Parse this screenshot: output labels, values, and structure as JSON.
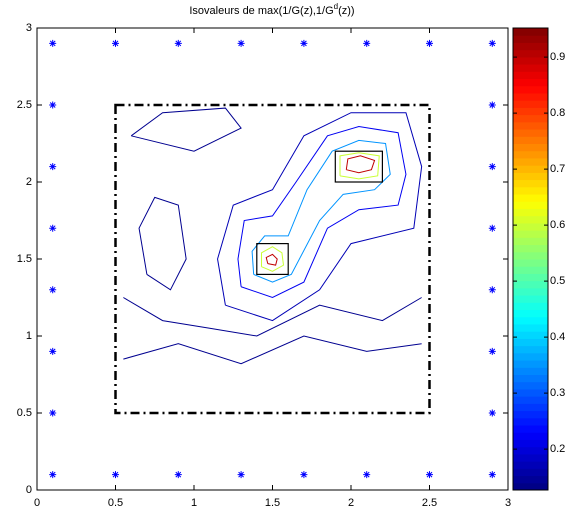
{
  "chart_data": {
    "type": "contour",
    "title": [
      "Isovaleurs de max(1/G(z),1/G",
      "d",
      "(z))"
    ],
    "xlim": [
      0,
      3
    ],
    "ylim": [
      0,
      3
    ],
    "xticks": [
      0,
      0.5,
      1,
      1.5,
      2,
      2.5,
      3
    ],
    "yticks": [
      0,
      0.5,
      1,
      1.5,
      2,
      2.5,
      3
    ],
    "colorbar": {
      "clim": [
        0.127,
        0.952
      ],
      "ticks": [
        0.2,
        0.3,
        0.4,
        0.5,
        0.6,
        0.7,
        0.8,
        0.9
      ],
      "colormap": "jet"
    },
    "domain": [
      0.5,
      2.5,
      0.5,
      2.5
    ],
    "boxes": [
      [
        1.4,
        1.6,
        1.4,
        1.6
      ],
      [
        1.9,
        2.2,
        2.0,
        2.2
      ]
    ],
    "sources": {
      "color": "#0000ff",
      "x": [
        0.1,
        0.5,
        0.9,
        1.3,
        1.7,
        2.1,
        2.5,
        2.9,
        0.1,
        0.5,
        0.9,
        1.3,
        1.7,
        2.1,
        2.5,
        2.9,
        0.1,
        0.1,
        0.1,
        0.1,
        0.1,
        0.1,
        2.9,
        2.9,
        2.9,
        2.9,
        2.9,
        2.9
      ],
      "y": [
        0.1,
        0.1,
        0.1,
        0.1,
        0.1,
        0.1,
        0.1,
        0.1,
        2.9,
        2.9,
        2.9,
        2.9,
        2.9,
        2.9,
        2.9,
        2.9,
        0.5,
        0.9,
        1.3,
        1.7,
        2.1,
        2.5,
        0.5,
        0.9,
        1.3,
        1.7,
        2.1,
        2.5
      ]
    },
    "contours": [
      {
        "level": 0.9,
        "x": [
          1.47,
          1.52,
          1.53,
          1.5,
          1.46,
          1.47
        ],
        "y": [
          1.47,
          1.46,
          1.5,
          1.53,
          1.51,
          1.47
        ]
      },
      {
        "level": 0.9,
        "x": [
          1.97,
          2.05,
          2.13,
          2.15,
          2.06,
          1.98,
          1.97
        ],
        "y": [
          2.08,
          2.06,
          2.08,
          2.14,
          2.17,
          2.15,
          2.08
        ]
      },
      {
        "level": 0.6,
        "x": [
          1.43,
          1.5,
          1.57,
          1.56,
          1.5,
          1.43,
          1.43
        ],
        "y": [
          1.45,
          1.42,
          1.46,
          1.54,
          1.58,
          1.54,
          1.45
        ]
      },
      {
        "level": 0.6,
        "x": [
          1.93,
          2.05,
          2.17,
          2.18,
          2.05,
          1.93,
          1.93
        ],
        "y": [
          2.04,
          2.02,
          2.04,
          2.17,
          2.19,
          2.17,
          2.04
        ]
      },
      {
        "level": 0.35,
        "x": [
          1.38,
          1.5,
          1.62,
          1.8,
          1.95,
          2.15,
          2.25,
          2.22,
          2.05,
          1.88,
          1.72,
          1.6,
          1.45,
          1.37,
          1.38
        ],
        "y": [
          1.4,
          1.35,
          1.4,
          1.75,
          1.92,
          1.95,
          2.05,
          2.25,
          2.27,
          2.2,
          1.95,
          1.65,
          1.65,
          1.55,
          1.4
        ]
      },
      {
        "level": 0.22,
        "x": [
          1.3,
          1.5,
          1.7,
          1.85,
          2.05,
          2.3,
          2.35,
          2.3,
          2.05,
          1.85,
          1.65,
          1.5,
          1.32,
          1.28,
          1.3
        ],
        "y": [
          1.32,
          1.25,
          1.35,
          1.7,
          1.82,
          1.85,
          2.05,
          2.32,
          2.36,
          2.3,
          2.0,
          1.78,
          1.75,
          1.5,
          1.32
        ]
      },
      {
        "level": 0.17,
        "x": [
          1.2,
          1.5,
          1.8,
          2.0,
          2.4,
          2.45,
          2.35,
          2.0,
          1.7,
          1.5,
          1.25,
          1.15,
          1.2
        ],
        "y": [
          1.2,
          1.1,
          1.3,
          1.6,
          1.7,
          2.1,
          2.45,
          2.45,
          2.3,
          1.95,
          1.85,
          1.5,
          1.2
        ]
      },
      {
        "level": 0.14,
        "x": [
          0.55,
          0.9,
          1.3,
          1.7,
          2.1,
          2.45
        ],
        "y": [
          0.85,
          0.95,
          0.82,
          1.0,
          0.9,
          0.95
        ]
      },
      {
        "level": 0.14,
        "x": [
          0.55,
          0.8,
          1.1,
          1.4,
          1.8,
          2.2,
          2.45
        ],
        "y": [
          1.25,
          1.1,
          1.05,
          1.0,
          1.2,
          1.1,
          1.25
        ]
      },
      {
        "level": 0.14,
        "x": [
          0.7,
          0.85,
          0.95,
          0.9,
          0.75,
          0.65,
          0.7
        ],
        "y": [
          1.4,
          1.3,
          1.5,
          1.85,
          1.9,
          1.7,
          1.4
        ]
      },
      {
        "level": 0.14,
        "x": [
          0.6,
          1.0,
          1.3,
          1.2,
          0.8,
          0.6
        ],
        "y": [
          2.3,
          2.2,
          2.35,
          2.48,
          2.45,
          2.3
        ]
      }
    ]
  }
}
